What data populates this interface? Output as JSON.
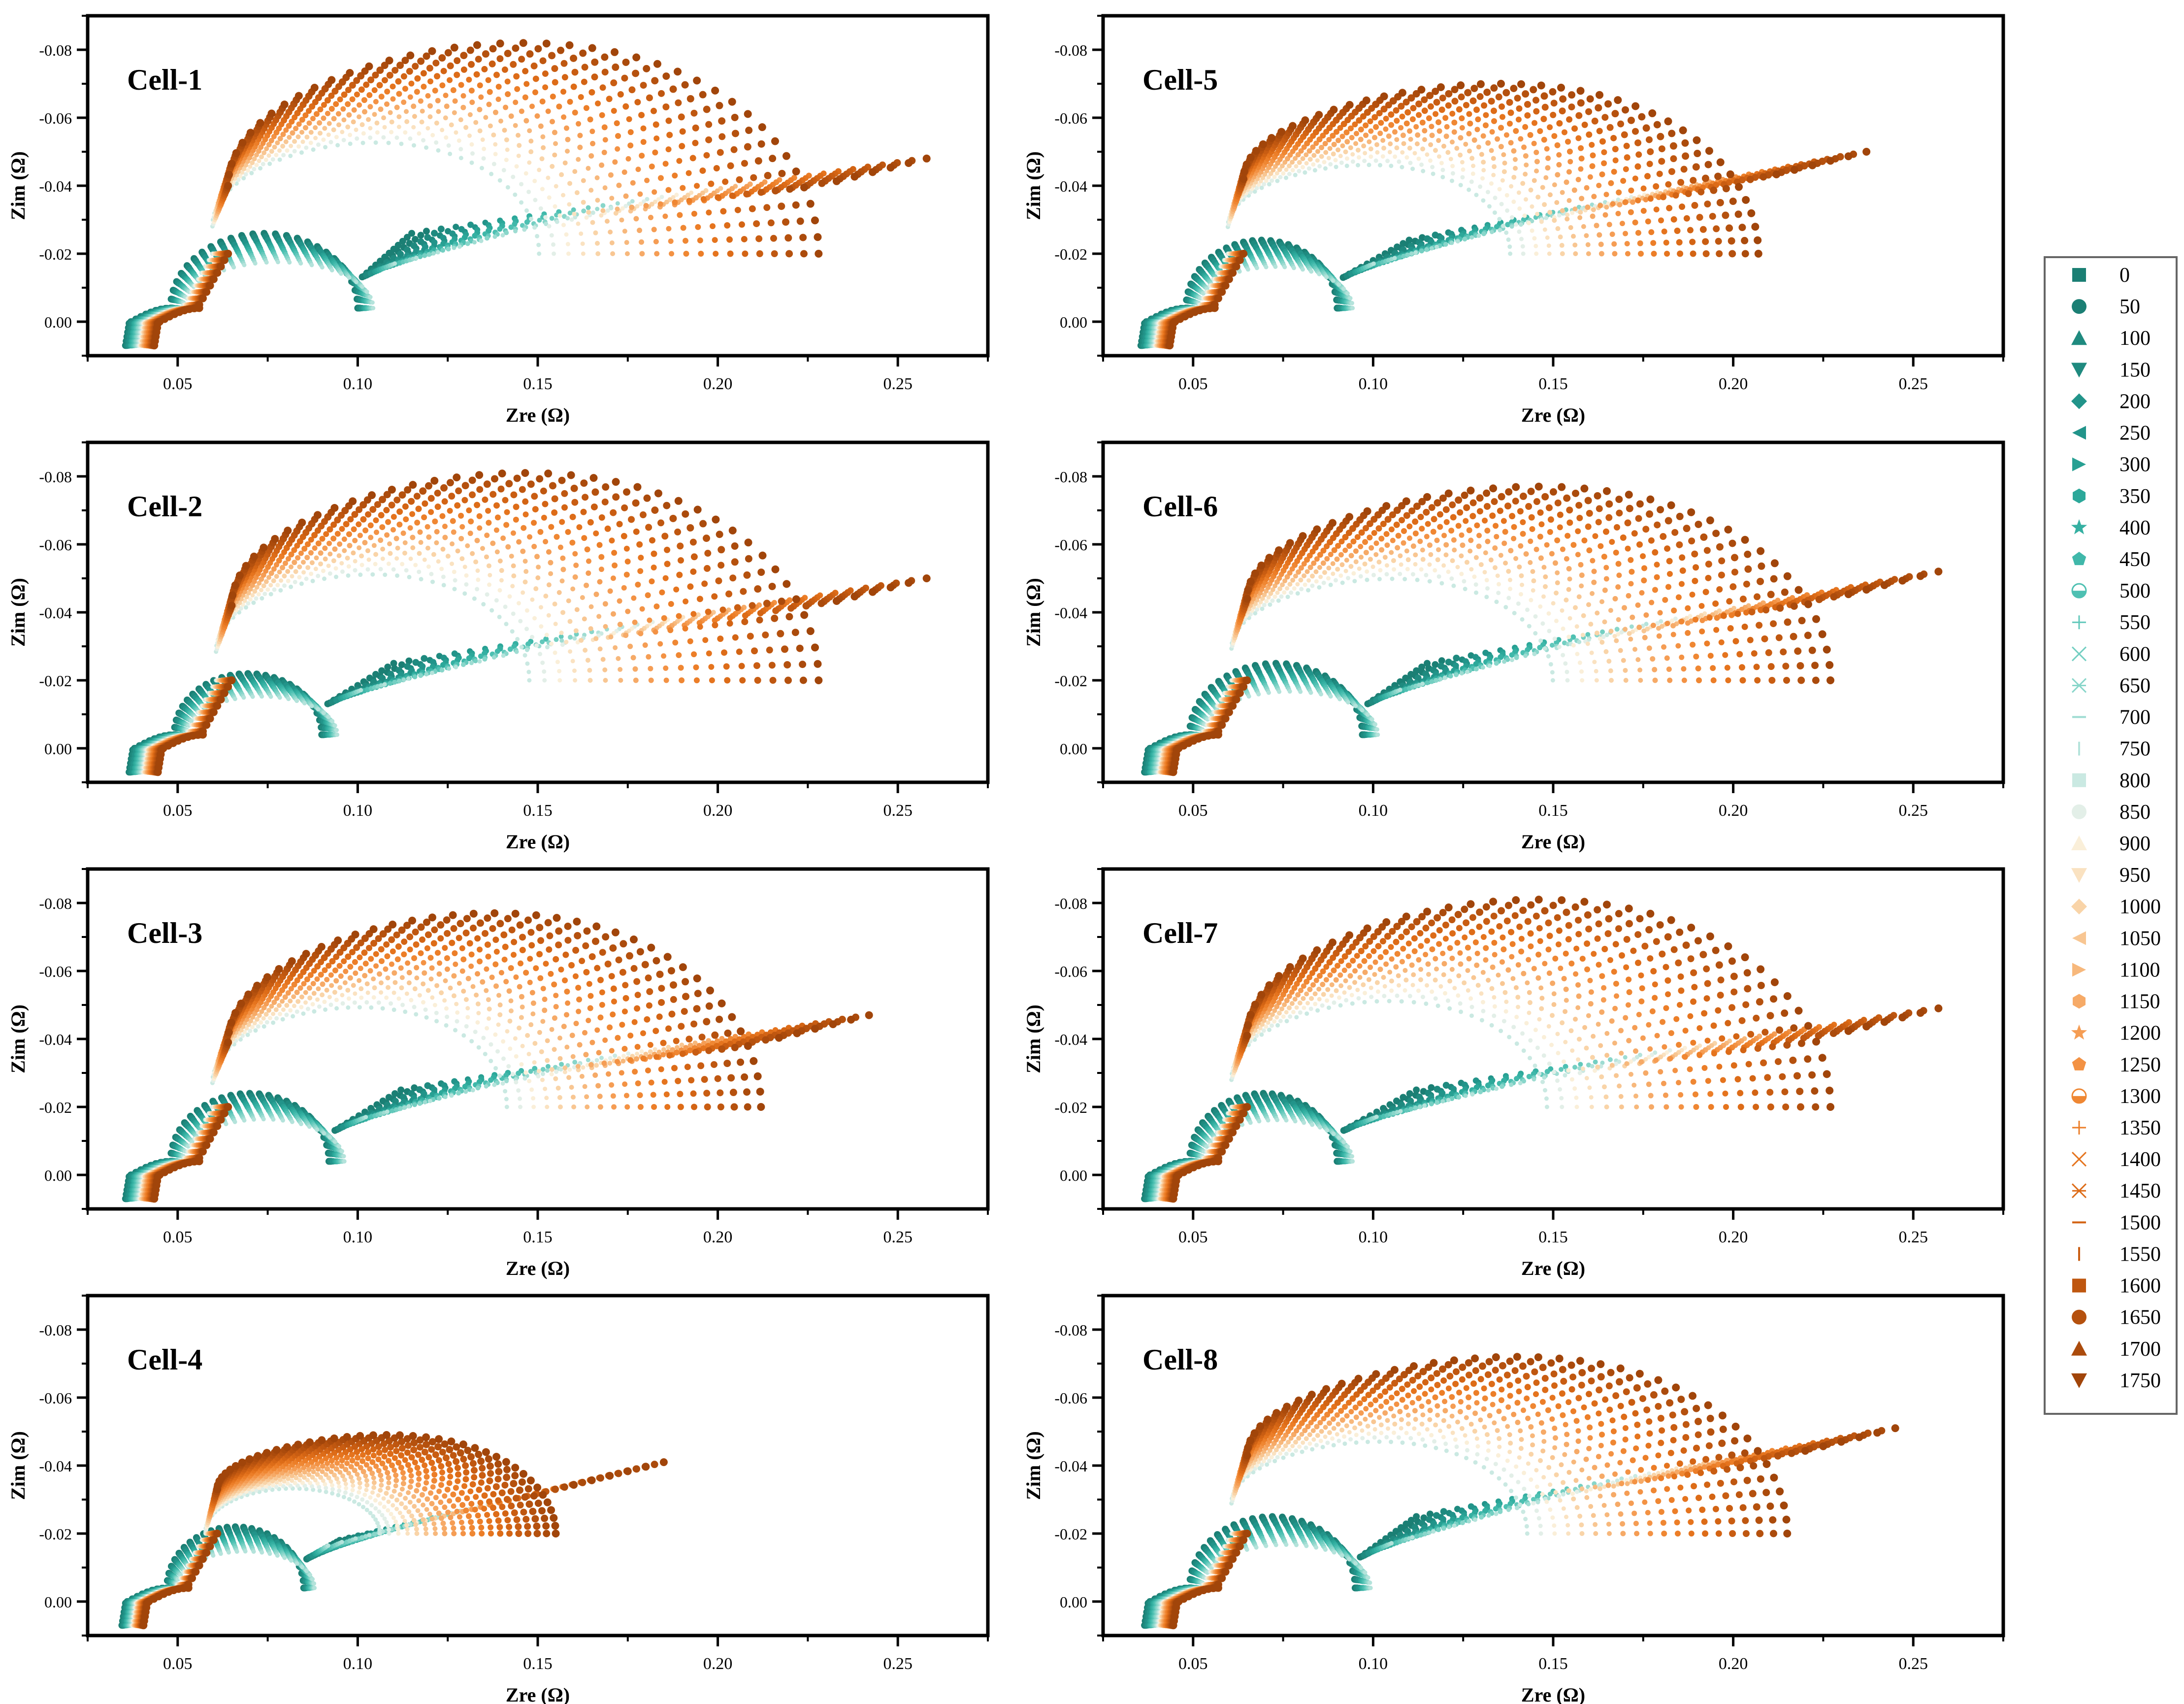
{
  "figure": {
    "x_axis_label": "Zre (Ω)",
    "y_axis_label": "Zim (Ω)",
    "legend_title": ""
  },
  "legend": {
    "entries": [
      {
        "label": "0",
        "marker": "square",
        "color": "#1b7f74"
      },
      {
        "label": "50",
        "marker": "circle",
        "color": "#1b7f74"
      },
      {
        "label": "100",
        "marker": "triangle-up",
        "color": "#1f8a7f"
      },
      {
        "label": "150",
        "marker": "triangle-down",
        "color": "#1f8a7f"
      },
      {
        "label": "200",
        "marker": "diamond",
        "color": "#22948a"
      },
      {
        "label": "250",
        "marker": "triangle-left",
        "color": "#22948a"
      },
      {
        "label": "300",
        "marker": "triangle-right",
        "color": "#28a093"
      },
      {
        "label": "350",
        "marker": "hexagon",
        "color": "#2ca89a"
      },
      {
        "label": "400",
        "marker": "star",
        "color": "#35b0a2"
      },
      {
        "label": "450",
        "marker": "pentagon",
        "color": "#40b8aa"
      },
      {
        "label": "500",
        "marker": "half-circle",
        "color": "#4ec0b2"
      },
      {
        "label": "550",
        "marker": "plus",
        "color": "#62c8bb"
      },
      {
        "label": "600",
        "marker": "x",
        "color": "#74cfc2"
      },
      {
        "label": "650",
        "marker": "asterisk",
        "color": "#88d6ca"
      },
      {
        "label": "700",
        "marker": "hline",
        "color": "#9edcd2"
      },
      {
        "label": "750",
        "marker": "vline",
        "color": "#b4e3db"
      },
      {
        "label": "800",
        "marker": "square",
        "color": "#cae9e2"
      },
      {
        "label": "850",
        "marker": "circle",
        "color": "#e3efe8"
      },
      {
        "label": "900",
        "marker": "triangle-up",
        "color": "#faefd9"
      },
      {
        "label": "950",
        "marker": "triangle-down",
        "color": "#fae2c1"
      },
      {
        "label": "1000",
        "marker": "diamond",
        "color": "#f9d4a8"
      },
      {
        "label": "1050",
        "marker": "triangle-left",
        "color": "#f8c692"
      },
      {
        "label": "1100",
        "marker": "triangle-right",
        "color": "#f7b87c"
      },
      {
        "label": "1150",
        "marker": "hexagon",
        "color": "#f6aa67"
      },
      {
        "label": "1200",
        "marker": "star",
        "color": "#f59d54"
      },
      {
        "label": "1250",
        "marker": "pentagon",
        "color": "#f39244"
      },
      {
        "label": "1300",
        "marker": "half-circle",
        "color": "#ef8733"
      },
      {
        "label": "1350",
        "marker": "plus",
        "color": "#ec7e28"
      },
      {
        "label": "1400",
        "marker": "x",
        "color": "#e5741e"
      },
      {
        "label": "1450",
        "marker": "asterisk",
        "color": "#dd6c18"
      },
      {
        "label": "1500",
        "marker": "hline",
        "color": "#d36414"
      },
      {
        "label": "1550",
        "marker": "vline",
        "color": "#c95d12"
      },
      {
        "label": "1600",
        "marker": "square",
        "color": "#bf5710"
      },
      {
        "label": "1650",
        "marker": "circle",
        "color": "#b5510e"
      },
      {
        "label": "1700",
        "marker": "triangle-up",
        "color": "#ab4b0c"
      },
      {
        "label": "1750",
        "marker": "triangle-down",
        "color": "#a1450a"
      }
    ]
  },
  "chart_data": [
    {
      "type": "scatter",
      "title": "Cell-1",
      "xlabel": "Zre (Ω)",
      "ylabel": "Zim (Ω)",
      "xlim": [
        0.025,
        0.275
      ],
      "ylim": [
        0.01,
        -0.09
      ],
      "xticks": [
        0.05,
        0.1,
        0.15,
        0.2,
        0.25
      ],
      "xtick_labels": [
        "0.05",
        "0.10",
        "0.15",
        "0.20",
        "0.25"
      ],
      "yticks": [
        0.0,
        -0.02,
        -0.04,
        -0.06,
        -0.08
      ],
      "ytick_labels": [
        "0.00",
        "-0.02",
        "-0.04",
        "-0.06",
        "-0.08"
      ],
      "series_params": {
        "r0_first": 0.036,
        "r0_last": 0.044,
        "arc1_end_first": 0.1,
        "arc1_end_last": 0.11,
        "h1_first": 0.022,
        "h1_last": 0.026,
        "end_x_first": 0.115,
        "end_x_last": 0.258,
        "peak_first": 0.028,
        "peak_last": 0.082,
        "end_y_first": 0.026,
        "end_y_last": 0.048
      }
    },
    {
      "type": "scatter",
      "title": "Cell-2",
      "xlabel": "Zre (Ω)",
      "ylabel": "Zim (Ω)",
      "xlim": [
        0.025,
        0.275
      ],
      "ylim": [
        0.01,
        -0.09
      ],
      "xticks": [
        0.05,
        0.1,
        0.15,
        0.2,
        0.25
      ],
      "xtick_labels": [
        "0.05",
        "0.10",
        "0.15",
        "0.20",
        "0.25"
      ],
      "yticks": [
        0.0,
        -0.02,
        -0.04,
        -0.06,
        -0.08
      ],
      "ytick_labels": [
        "0.00",
        "-0.02",
        "-0.04",
        "-0.06",
        "-0.08"
      ],
      "series_params": {
        "r0_first": 0.037,
        "r0_last": 0.045,
        "arc1_end_first": 0.09,
        "arc1_end_last": 0.1,
        "h1_first": 0.018,
        "h1_last": 0.022,
        "end_x_first": 0.11,
        "end_x_last": 0.258,
        "peak_first": 0.026,
        "peak_last": 0.081,
        "end_y_first": 0.025,
        "end_y_last": 0.05
      }
    },
    {
      "type": "scatter",
      "title": "Cell-3",
      "xlabel": "Zre (Ω)",
      "ylabel": "Zim (Ω)",
      "xlim": [
        0.025,
        0.275
      ],
      "ylim": [
        0.01,
        -0.09
      ],
      "xticks": [
        0.05,
        0.1,
        0.15,
        0.2,
        0.25
      ],
      "xtick_labels": [
        "0.05",
        "0.10",
        "0.15",
        "0.20",
        "0.25"
      ],
      "yticks": [
        0.0,
        -0.02,
        -0.04,
        -0.06,
        -0.08
      ],
      "ytick_labels": [
        "0.00",
        "-0.02",
        "-0.04",
        "-0.06",
        "-0.08"
      ],
      "series_params": {
        "r0_first": 0.036,
        "r0_last": 0.044,
        "arc1_end_first": 0.092,
        "arc1_end_last": 0.102,
        "h1_first": 0.02,
        "h1_last": 0.024,
        "end_x_first": 0.112,
        "end_x_last": 0.242,
        "peak_first": 0.026,
        "peak_last": 0.077,
        "end_y_first": 0.025,
        "end_y_last": 0.047
      }
    },
    {
      "type": "scatter",
      "title": "Cell-4",
      "xlabel": "Zre (Ω)",
      "ylabel": "Zim (Ω)",
      "xlim": [
        0.025,
        0.275
      ],
      "ylim": [
        0.01,
        -0.09
      ],
      "xticks": [
        0.05,
        0.1,
        0.15,
        0.2,
        0.25
      ],
      "xtick_labels": [
        "0.05",
        "0.10",
        "0.15",
        "0.20",
        "0.25"
      ],
      "yticks": [
        0.0,
        -0.02,
        -0.04,
        -0.06,
        -0.08
      ],
      "ytick_labels": [
        "0.00",
        "-0.02",
        "-0.04",
        "-0.06",
        "-0.08"
      ],
      "series_params": {
        "r0_first": 0.035,
        "r0_last": 0.041,
        "arc1_end_first": 0.085,
        "arc1_end_last": 0.092,
        "h1_first": 0.018,
        "h1_last": 0.02,
        "end_x_first": 0.095,
        "end_x_last": 0.185,
        "peak_first": 0.02,
        "peak_last": 0.049,
        "end_y_first": 0.018,
        "end_y_last": 0.041
      }
    },
    {
      "type": "scatter",
      "title": "Cell-5",
      "xlabel": "Zre (Ω)",
      "ylabel": "Zim (Ω)",
      "xlim": [
        0.025,
        0.275
      ],
      "ylim": [
        0.01,
        -0.09
      ],
      "xticks": [
        0.05,
        0.1,
        0.15,
        0.2,
        0.25
      ],
      "xtick_labels": [
        "0.05",
        "0.10",
        "0.15",
        "0.20",
        "0.25"
      ],
      "yticks": [
        0.0,
        -0.02,
        -0.04,
        -0.06,
        -0.08
      ],
      "ytick_labels": [
        "0.00",
        "-0.02",
        "-0.04",
        "-0.06",
        "-0.08"
      ],
      "series_params": {
        "r0_first": 0.036,
        "r0_last": 0.044,
        "arc1_end_first": 0.09,
        "arc1_end_last": 0.1,
        "h1_first": 0.02,
        "h1_last": 0.023,
        "end_x_first": 0.11,
        "end_x_last": 0.237,
        "peak_first": 0.026,
        "peak_last": 0.07,
        "end_y_first": 0.024,
        "end_y_last": 0.05
      }
    },
    {
      "type": "scatter",
      "title": "Cell-6",
      "xlabel": "Zre (Ω)",
      "ylabel": "Zim (Ω)",
      "xlim": [
        0.025,
        0.275
      ],
      "ylim": [
        0.01,
        -0.09
      ],
      "xticks": [
        0.05,
        0.1,
        0.15,
        0.2,
        0.25
      ],
      "xtick_labels": [
        "0.05",
        "0.10",
        "0.15",
        "0.20",
        "0.25"
      ],
      "yticks": [
        0.0,
        -0.02,
        -0.04,
        -0.06,
        -0.08
      ],
      "ytick_labels": [
        "0.00",
        "-0.02",
        "-0.04",
        "-0.06",
        "-0.08"
      ],
      "series_params": {
        "r0_first": 0.037,
        "r0_last": 0.045,
        "arc1_end_first": 0.097,
        "arc1_end_last": 0.107,
        "h1_first": 0.021,
        "h1_last": 0.024,
        "end_x_first": 0.115,
        "end_x_last": 0.257,
        "peak_first": 0.027,
        "peak_last": 0.077,
        "end_y_first": 0.025,
        "end_y_last": 0.052
      }
    },
    {
      "type": "scatter",
      "title": "Cell-7",
      "xlabel": "Zre (Ω)",
      "ylabel": "Zim (Ω)",
      "xlim": [
        0.025,
        0.275
      ],
      "ylim": [
        0.01,
        -0.09
      ],
      "xticks": [
        0.05,
        0.1,
        0.15,
        0.2,
        0.25
      ],
      "xtick_labels": [
        "0.05",
        "0.10",
        "0.15",
        "0.20",
        "0.25"
      ],
      "yticks": [
        0.0,
        -0.02,
        -0.04,
        -0.06,
        -0.08
      ],
      "ytick_labels": [
        "0.00",
        "-0.02",
        "-0.04",
        "-0.06",
        "-0.08"
      ],
      "series_params": {
        "r0_first": 0.037,
        "r0_last": 0.045,
        "arc1_end_first": 0.09,
        "arc1_end_last": 0.1,
        "h1_first": 0.02,
        "h1_last": 0.023,
        "end_x_first": 0.112,
        "end_x_last": 0.257,
        "peak_first": 0.026,
        "peak_last": 0.081,
        "end_y_first": 0.025,
        "end_y_last": 0.049
      }
    },
    {
      "type": "scatter",
      "title": "Cell-8",
      "xlabel": "Zre (Ω)",
      "ylabel": "Zim (Ω)",
      "xlim": [
        0.025,
        0.275
      ],
      "ylim": [
        0.01,
        -0.09
      ],
      "xticks": [
        0.05,
        0.1,
        0.15,
        0.2,
        0.25
      ],
      "xtick_labels": [
        "0.05",
        "0.10",
        "0.15",
        "0.20",
        "0.25"
      ],
      "yticks": [
        0.0,
        -0.02,
        -0.04,
        -0.06,
        -0.08
      ],
      "ytick_labels": [
        "0.00",
        "-0.02",
        "-0.04",
        "-0.06",
        "-0.08"
      ],
      "series_params": {
        "r0_first": 0.037,
        "r0_last": 0.045,
        "arc1_end_first": 0.095,
        "arc1_end_last": 0.105,
        "h1_first": 0.021,
        "h1_last": 0.024,
        "end_x_first": 0.112,
        "end_x_last": 0.245,
        "peak_first": 0.026,
        "peak_last": 0.072,
        "end_y_first": 0.025,
        "end_y_last": 0.051
      }
    }
  ]
}
